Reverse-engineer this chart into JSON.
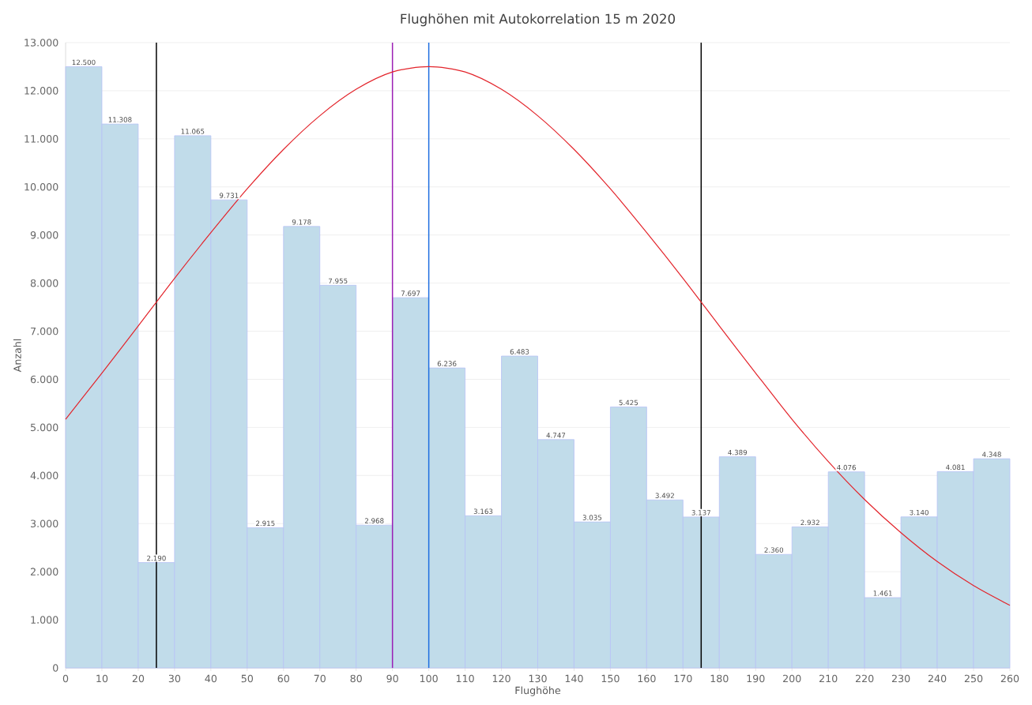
{
  "chart_data": {
    "type": "histogram",
    "title": "Flughöhen mit Autokorrelation 15 m 2020",
    "xlabel": "Flughöhe",
    "ylabel": "Anzahl",
    "bins": [
      0,
      10,
      20,
      30,
      40,
      50,
      60,
      70,
      80,
      90,
      100,
      110,
      120,
      130,
      140,
      150,
      160,
      170,
      180,
      190,
      200,
      210,
      220,
      230,
      240,
      250,
      260
    ],
    "values": [
      12500,
      11308,
      2190,
      11065,
      9731,
      2915,
      9178,
      7955,
      2968,
      7697,
      6236,
      3163,
      6483,
      4747,
      3035,
      5425,
      3492,
      3137,
      4389,
      2360,
      2932,
      4076,
      1461,
      3140,
      4081,
      4348
    ],
    "value_labels": [
      "12.500",
      "11.308",
      "2.190",
      "11.065",
      "9.731",
      "2.915",
      "9.178",
      "7.955",
      "2.968",
      "7.697",
      "6.236",
      "3.163",
      "6.483",
      "4.747",
      "3.035",
      "5.425",
      "3.492",
      "3.137",
      "4.389",
      "2.360",
      "2.932",
      "4.076",
      "1.461",
      "3.140",
      "4.081",
      "4.348"
    ],
    "color": "#c1dcea",
    "series": [
      {
        "type": "line",
        "color": "#e3242b",
        "line_style": "solid",
        "marker": "none",
        "x": [
          0,
          10,
          20,
          30,
          40,
          50,
          60,
          70,
          80,
          90,
          100,
          110,
          120,
          130,
          140,
          150,
          160,
          170,
          180,
          190,
          200,
          210,
          220,
          230,
          240,
          250,
          260
        ],
        "values": [
          5170,
          6130,
          7110,
          8100,
          9050,
          9960,
          10780,
          11480,
          12030,
          12390,
          12500,
          12390,
          12030,
          11480,
          10780,
          9960,
          9050,
          8100,
          7110,
          6130,
          5170,
          4290,
          3500,
          2810,
          2210,
          1710,
          1300
        ]
      }
    ],
    "ref_lines": [
      {
        "axis": "x",
        "value": 25,
        "color": "#000000"
      },
      {
        "axis": "x",
        "value": 90,
        "color": "#9b1fb5"
      },
      {
        "axis": "x",
        "value": 100,
        "color": "#1f6fe0"
      },
      {
        "axis": "x",
        "value": 175,
        "color": "#000000"
      }
    ],
    "xlim": [
      0,
      260
    ],
    "ylim": [
      0,
      13000
    ],
    "xticks": [
      0,
      10,
      20,
      30,
      40,
      50,
      60,
      70,
      80,
      90,
      100,
      110,
      120,
      130,
      140,
      150,
      160,
      170,
      180,
      190,
      200,
      210,
      220,
      230,
      240,
      250,
      260
    ],
    "yticks": [
      0,
      {
        "value": 1000,
        "label": "1.000"
      },
      {
        "value": 2000,
        "label": "2.000"
      },
      {
        "value": 3000,
        "label": "3.000"
      },
      {
        "value": 4000,
        "label": "4.000"
      },
      {
        "value": 5000,
        "label": "5.000"
      },
      {
        "value": 6000,
        "label": "6.000"
      },
      {
        "value": 7000,
        "label": "7.000"
      },
      {
        "value": 8000,
        "label": "8.000"
      },
      {
        "value": 9000,
        "label": "9.000"
      },
      {
        "value": 10000,
        "label": "10.000"
      },
      {
        "value": 11000,
        "label": "11.000"
      },
      {
        "value": 12000,
        "label": "12.000"
      },
      {
        "value": 13000,
        "label": "13.000"
      }
    ],
    "grid": "y"
  }
}
